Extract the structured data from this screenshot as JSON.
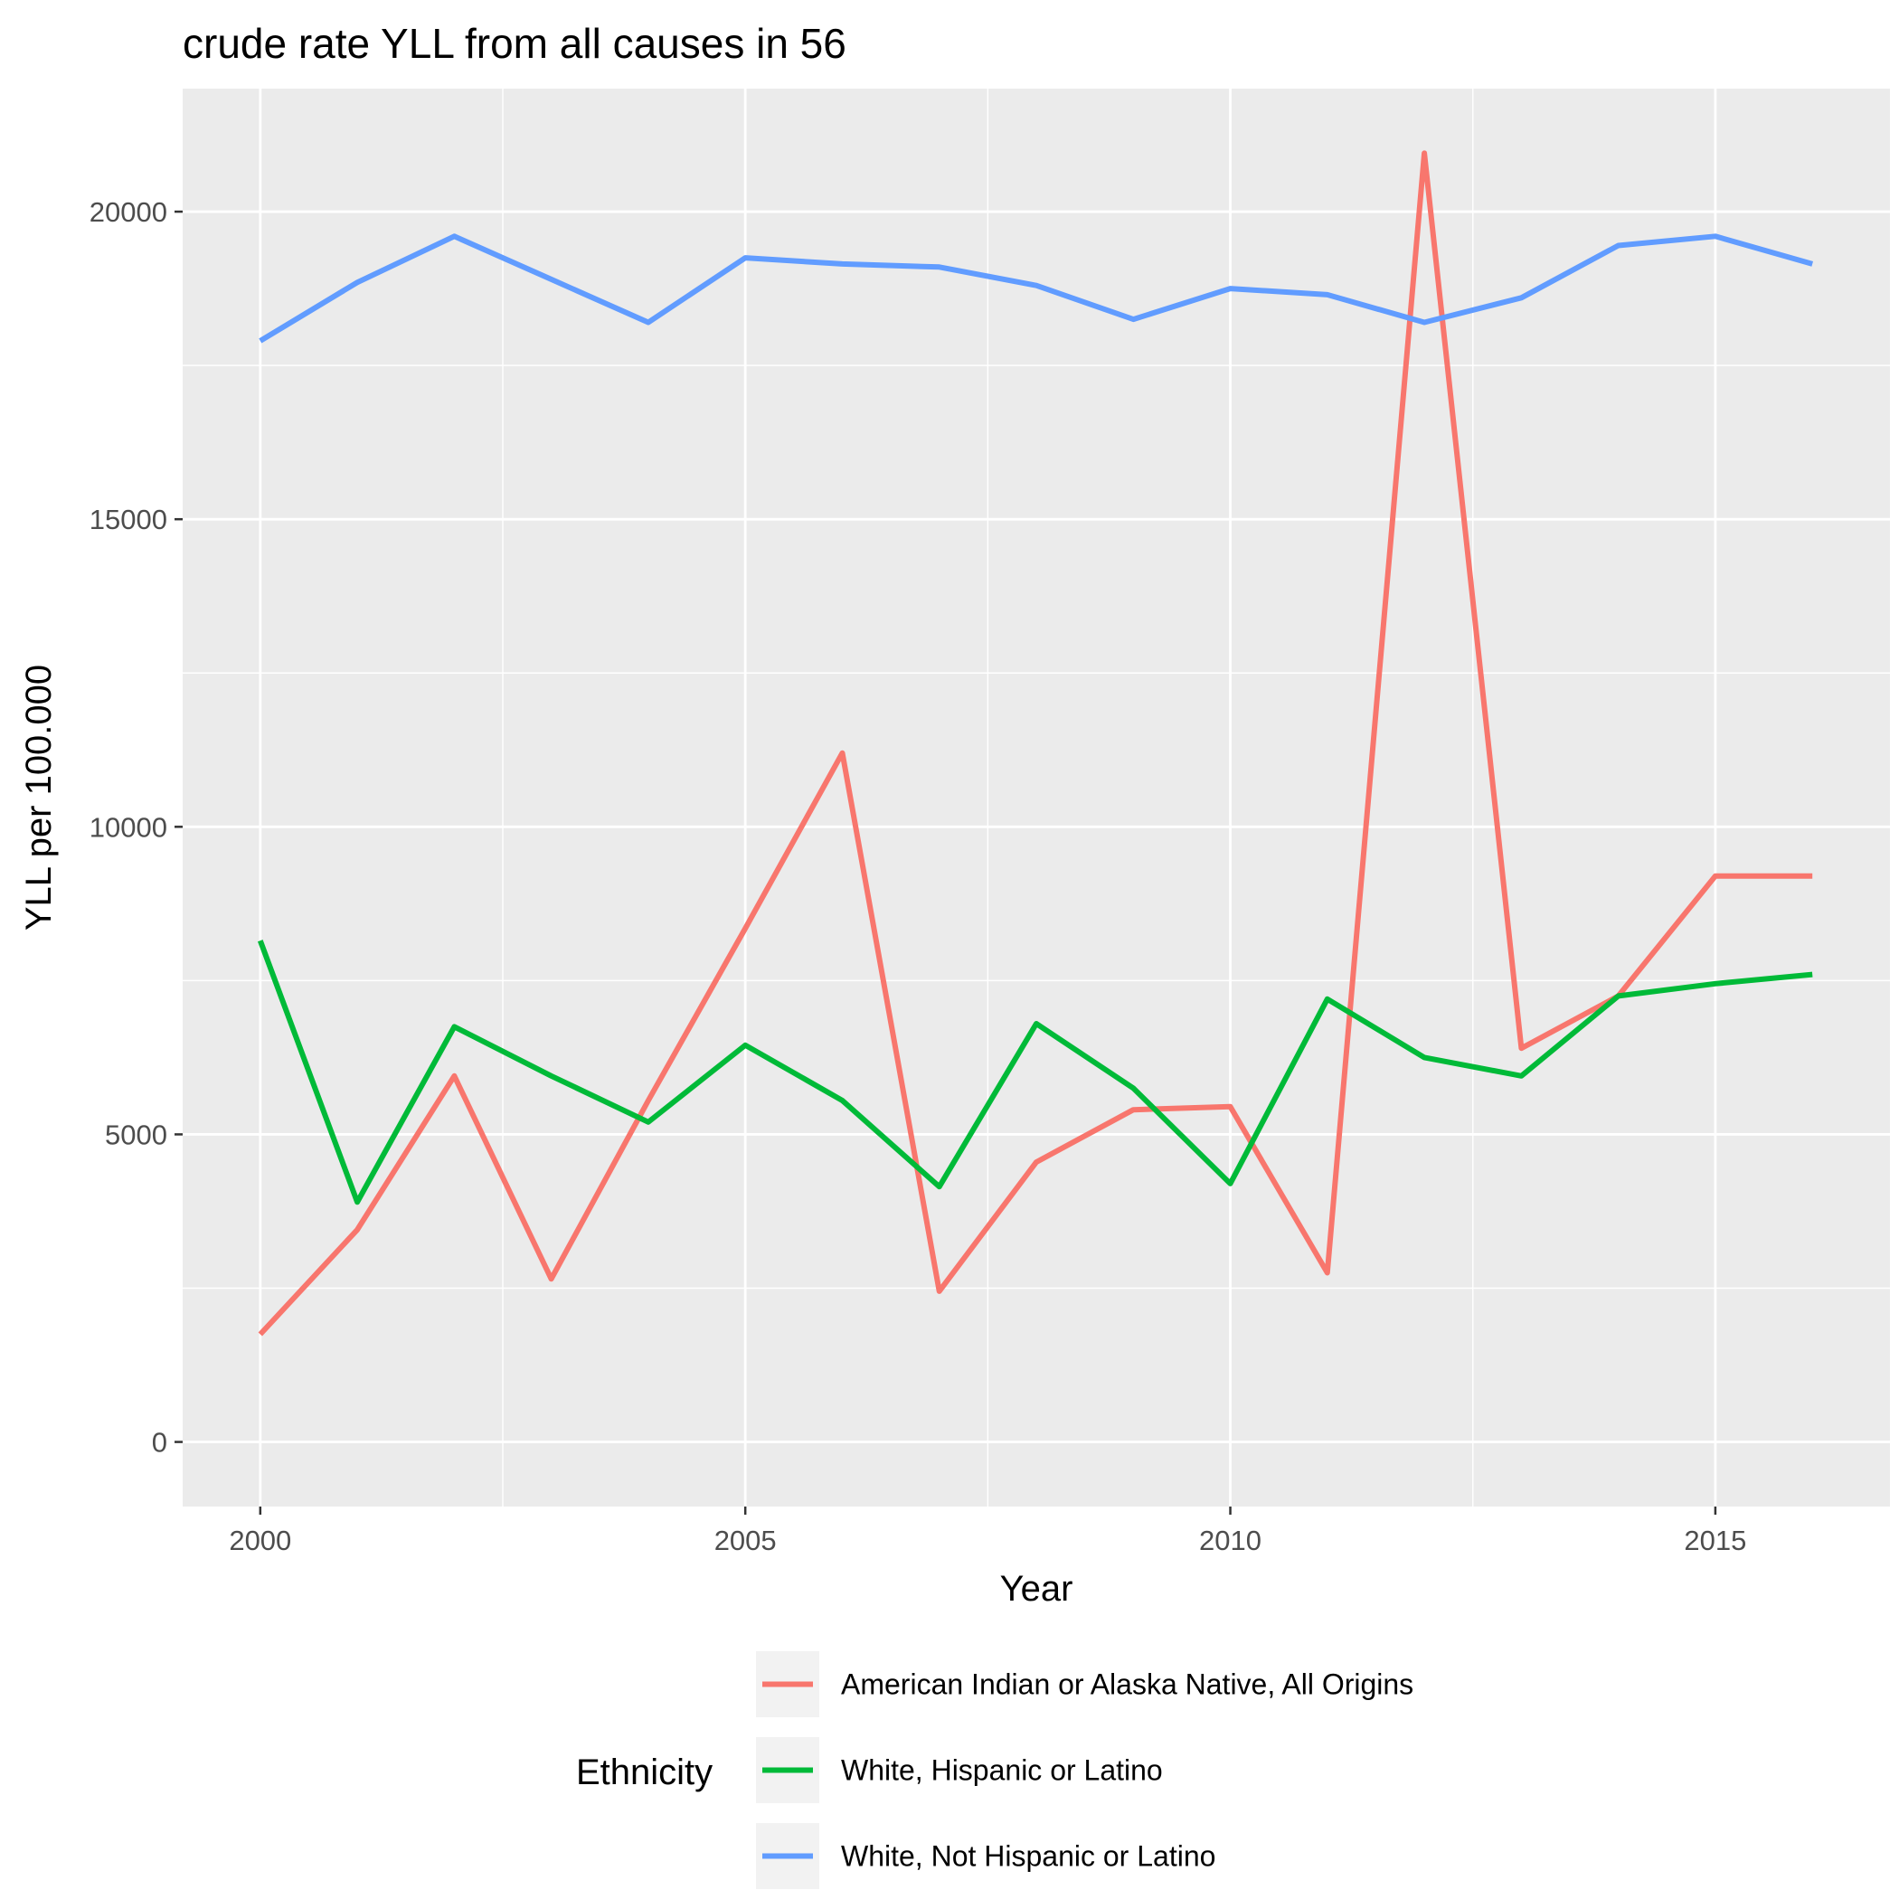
{
  "chart_data": {
    "type": "line",
    "title": "crude rate YLL from all causes in 56",
    "xlabel": "Year",
    "ylabel": "YLL per 100.000",
    "xlim": [
      1999.2,
      2016.8
    ],
    "ylim": [
      -1050,
      22000
    ],
    "x_ticks": [
      2000,
      2005,
      2010,
      2015
    ],
    "x_tick_labels": [
      "2000",
      "2005",
      "2010",
      "2015"
    ],
    "y_ticks": [
      0,
      5000,
      10000,
      15000,
      20000
    ],
    "y_tick_labels": [
      "0",
      "5000",
      "10000",
      "15000",
      "20000"
    ],
    "grid": true,
    "legend": {
      "title": "Ethnicity",
      "position": "bottom"
    },
    "x": [
      2000,
      2001,
      2002,
      2003,
      2004,
      2005,
      2006,
      2007,
      2008,
      2009,
      2010,
      2011,
      2012,
      2013,
      2014,
      2015,
      2016
    ],
    "series": [
      {
        "name": "American Indian or Alaska Native, All Origins",
        "color": "#F8766D",
        "values": [
          1750,
          3450,
          5950,
          2650,
          5550,
          8350,
          11200,
          2450,
          4550,
          5400,
          5450,
          2750,
          20950,
          6400,
          7250,
          9200,
          9200
        ]
      },
      {
        "name": "White, Hispanic or Latino",
        "color": "#00BA38",
        "values": [
          8150,
          3900,
          6750,
          5950,
          5200,
          6450,
          5550,
          4150,
          6800,
          5750,
          4200,
          7200,
          6250,
          5950,
          7250,
          7450,
          7600
        ]
      },
      {
        "name": "White, Not Hispanic or Latino",
        "color": "#619CFF",
        "values": [
          17900,
          18850,
          19600,
          18900,
          18200,
          19250,
          19150,
          19100,
          18800,
          18250,
          18750,
          18650,
          18200,
          18600,
          19450,
          19600,
          19150
        ]
      }
    ]
  }
}
